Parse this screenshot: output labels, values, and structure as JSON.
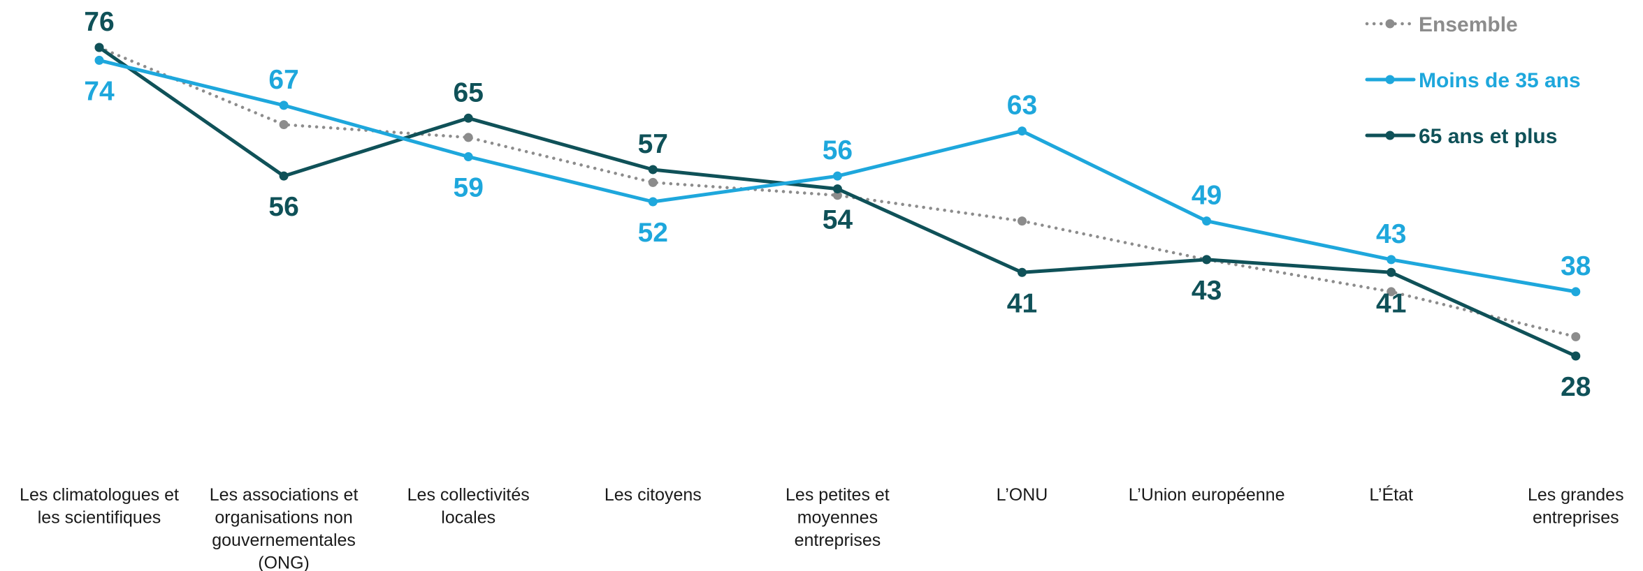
{
  "chart_data": {
    "type": "line",
    "categories": [
      "Les climatologues et les scientifiques",
      "Les associations et organisations non gouvernementales (ONG)",
      "Les collectivités locales",
      "Les citoyens",
      "Les petites et moyennes entreprises",
      "L’ONU",
      "L’Union européenne",
      "L’État",
      "Les grandes entreprises"
    ],
    "category_lines": [
      [
        "Les climatologues et",
        "les scientifiques"
      ],
      [
        "Les associations et",
        "organisations non",
        "gouvernementales",
        "(ONG)"
      ],
      [
        "Les collectivités",
        "locales"
      ],
      [
        "Les citoyens"
      ],
      [
        "Les petites et",
        "moyennes",
        "entreprises"
      ],
      [
        "L’ONU"
      ],
      [
        "L’Union européenne"
      ],
      [
        "L’État"
      ],
      [
        "Les grandes",
        "entreprises"
      ]
    ],
    "series": [
      {
        "name": "Ensemble",
        "values": [
          76,
          64,
          62,
          55,
          53,
          49,
          43,
          38,
          31
        ],
        "color": "#8c8c8c",
        "style": "dotted",
        "show_labels": false
      },
      {
        "name": "Moins de 35 ans",
        "values": [
          74,
          67,
          59,
          52,
          56,
          63,
          49,
          43,
          38
        ],
        "color": "#1ea7dc",
        "style": "solid",
        "show_labels": true
      },
      {
        "name": "65 ans et plus",
        "values": [
          76,
          56,
          65,
          57,
          54,
          41,
          43,
          41,
          28
        ],
        "color": "#0f5158",
        "style": "solid",
        "show_labels": true
      }
    ],
    "ylim": [
      20,
      80
    ],
    "grid": false,
    "legend": "top-right",
    "title": "",
    "xlabel": "",
    "ylabel": ""
  }
}
